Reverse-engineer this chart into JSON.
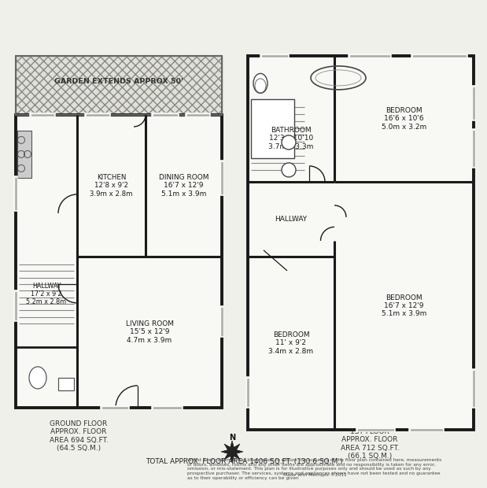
{
  "bg_color": "#f0f0eb",
  "wall_color": "#1a1a1a",
  "room_fill": "#ffffff",
  "garden_fill": "#e0e0d8",
  "ground_floor_label": "GROUND FLOOR\nAPPROX. FLOOR\nAREA 694 SQ.FT.\n(64.5 SQ.M.)",
  "first_floor_label": "1ST FLOOR\nAPPROX. FLOOR\nAREA 712 SQ.FT.\n(66.1 SQ.M.)",
  "total_label": "TOTAL APPROX. FLOOR AREA 1406 SQ.FT. (130.6 SQ.M.)",
  "disclaimer": "Whilst every attempt has been made to ensure the accuracy of the floor plan contained here, measurements\nof doors, windows, rooms and any other items are approximate and no responsibility is taken for any error,\nomission, or mis-statement. This plan is for illustrative purposes only and should be used as such by any\nprospective purchaser. The services, systems and appliances shown have not been tested and no guarantee\nas to their operability or efficiency can be given",
  "made_with": "Made with Metropix ©2011",
  "rooms": {
    "garden": "GARDEN EXTENDS APPROX 50'",
    "kitchen": "KITCHEN\n12'8 x 9'2\n3.9m x 2.8m",
    "dining": "DINING ROOM\n16'7 x 12'9\n5.1m x 3.9m",
    "hallway_gf": "HALLWAY\n17'2 x 9'2\n5.2m x 2.8m",
    "living": "LIVING ROOM\n15'5 x 12'9\n4.7m x 3.9m",
    "bathroom": "BATHROOM\n12'3 x 10'10\n3.7m x 3.3m",
    "hallway_ff": "HALLWAY",
    "bedroom1": "BEDROOM\n16'6 x 10'6\n5.0m x 3.2m",
    "bedroom2": "BEDROOM\n16'7 x 12'9\n5.1m x 3.9m",
    "bedroom3": "BEDROOM\n11' x 9'2\n3.4m x 2.8m"
  }
}
